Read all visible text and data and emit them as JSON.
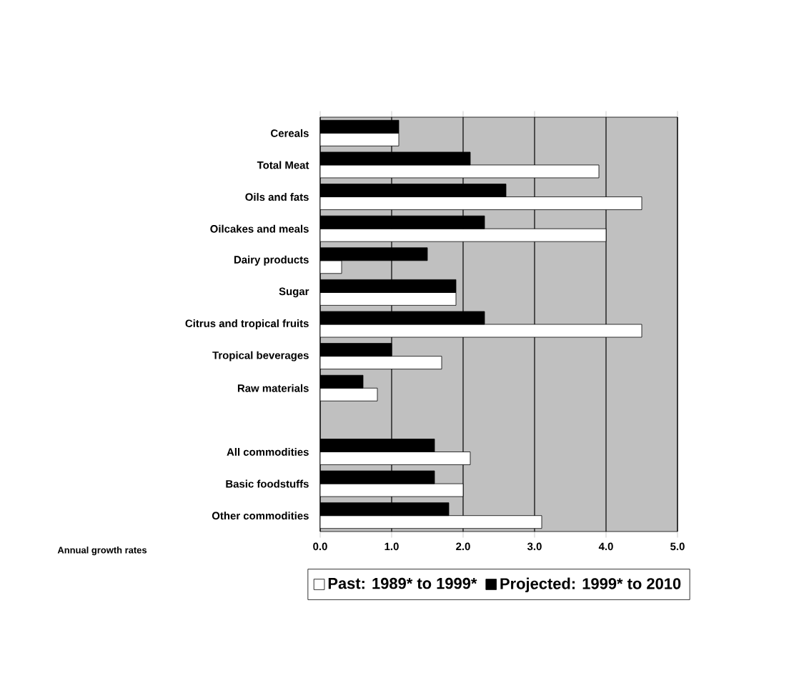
{
  "chart_data": {
    "type": "bar",
    "orientation": "horizontal",
    "xlabel": "Annual growth rates",
    "categories": [
      "Cereals",
      "Total Meat",
      "Oils and fats",
      "Oilcakes and meals",
      "Dairy products",
      "Sugar",
      "Citrus and tropical fruits",
      "Tropical beverages",
      "Raw materials",
      null,
      "All commodities",
      "Basic foodstuffs",
      "Other commodities"
    ],
    "series": [
      {
        "name": "Past: 1989* to 1999*",
        "color": "#ffffff",
        "values": [
          1.1,
          3.9,
          4.5,
          4.0,
          0.3,
          1.9,
          4.5,
          1.7,
          0.8,
          null,
          2.1,
          2.0,
          3.1
        ]
      },
      {
        "name": "Projected: 1999* to 2010",
        "color": "#000000",
        "values": [
          1.1,
          2.1,
          2.6,
          2.3,
          1.5,
          1.9,
          2.3,
          1.0,
          0.6,
          null,
          1.6,
          1.6,
          1.8
        ]
      }
    ],
    "xlim": [
      0,
      5
    ],
    "xticks": [
      {
        "value": 0,
        "label": "0.0"
      },
      {
        "value": 1,
        "label": "1.0"
      },
      {
        "value": 2,
        "label": "2.0"
      },
      {
        "value": 3,
        "label": "3.0"
      },
      {
        "value": 4,
        "label": "4.0"
      },
      {
        "value": 5,
        "label": "5.0"
      }
    ],
    "grid": "x",
    "legend": "bottom"
  }
}
